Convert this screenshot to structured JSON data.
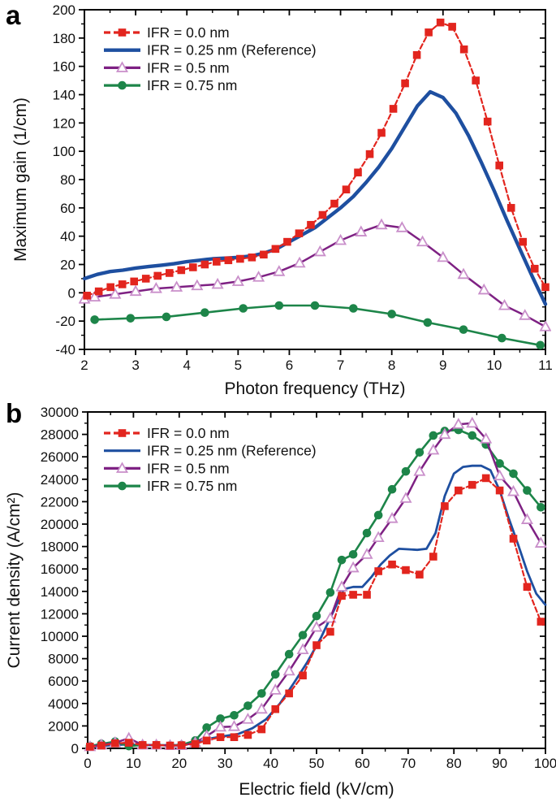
{
  "panels": [
    {
      "label": "a"
    },
    {
      "label": "b"
    }
  ],
  "chart_data": [
    {
      "type": "line",
      "panel": "a",
      "title": "",
      "xlabel": "Photon frequency (THz)",
      "ylabel": "Maximum gain (1/cm)",
      "xlim": [
        2,
        11
      ],
      "ylim": [
        -40,
        200
      ],
      "xticks": [
        2,
        3,
        4,
        5,
        6,
        7,
        8,
        9,
        10,
        11
      ],
      "yticks": [
        -40,
        -20,
        0,
        20,
        40,
        60,
        80,
        100,
        120,
        140,
        160,
        180,
        200
      ],
      "x_minor_step": 0.5,
      "y_minor_step": 10,
      "grid": false,
      "legend_position": "top-left",
      "series_order": [
        1,
        3,
        2,
        0
      ],
      "series": [
        {
          "name": "IFR = 0.0 nm",
          "color": "#e2251e",
          "marker": "square",
          "line": "dash",
          "width": 2.2,
          "x": [
            2.05,
            2.28,
            2.51,
            2.74,
            2.97,
            3.2,
            3.43,
            3.66,
            3.89,
            4.12,
            4.35,
            4.58,
            4.81,
            5.04,
            5.27,
            5.5,
            5.73,
            5.96,
            6.19,
            6.42,
            6.65,
            6.88,
            7.11,
            7.34,
            7.57,
            7.8,
            8.03,
            8.26,
            8.49,
            8.72,
            8.95,
            9.18,
            9.41,
            9.64,
            9.87,
            10.1,
            10.33,
            10.56,
            10.79,
            11.0
          ],
          "y": [
            -2,
            1,
            4,
            6,
            8,
            10,
            12,
            14,
            16,
            18,
            20,
            22,
            23,
            24,
            25,
            27,
            31,
            36,
            42,
            48,
            55,
            63,
            73,
            85,
            98,
            113,
            130,
            148,
            168,
            184,
            191,
            188,
            172,
            150,
            121,
            90,
            60,
            36,
            17,
            4
          ]
        },
        {
          "name": "IFR = 0.25 nm (Reference)",
          "color": "#1e4fa0",
          "marker": "none",
          "line": "solid",
          "width": 4.4,
          "x": [
            2,
            2.25,
            2.5,
            2.75,
            3,
            3.25,
            3.5,
            3.75,
            4,
            4.25,
            4.5,
            4.75,
            5,
            5.25,
            5.5,
            5.75,
            6,
            6.25,
            6.5,
            6.75,
            7,
            7.25,
            7.5,
            7.75,
            8,
            8.25,
            8.5,
            8.75,
            9,
            9.25,
            9.5,
            9.75,
            10,
            10.25,
            10.5,
            10.75,
            11
          ],
          "y": [
            10,
            13,
            15,
            16,
            17.5,
            18.5,
            19.5,
            20.5,
            22,
            23,
            24,
            24.5,
            25,
            26,
            28,
            31,
            36,
            41,
            46,
            53,
            60,
            68,
            78,
            89,
            102,
            117,
            132,
            142,
            138,
            127,
            111,
            92,
            72,
            51,
            31,
            11,
            -8
          ]
        },
        {
          "name": "IFR = 0.5 nm",
          "color": "#7e2183",
          "marker": "triangle-open",
          "marker_stroke": "#c98fca",
          "line": "solid",
          "width": 2.5,
          "x": [
            2.0,
            2.2,
            2.6,
            3.0,
            3.4,
            3.8,
            4.2,
            4.6,
            5.0,
            5.4,
            5.8,
            6.2,
            6.6,
            7.0,
            7.4,
            7.8,
            8.2,
            8.6,
            9.0,
            9.4,
            9.8,
            10.2,
            10.6,
            11.0
          ],
          "y": [
            -4.5,
            -3,
            -1,
            1,
            3,
            4,
            5,
            6,
            8,
            11,
            15,
            21,
            29,
            37,
            43,
            48,
            46,
            36,
            25,
            13,
            2,
            -9,
            -16,
            -24
          ]
        },
        {
          "name": "IFR = 0.75 nm",
          "color": "#1d8549",
          "marker": "circle",
          "line": "solid",
          "width": 2.6,
          "x": [
            2.2,
            2.9,
            3.6,
            4.35,
            5.1,
            5.8,
            6.5,
            7.25,
            8.0,
            8.7,
            9.4,
            10.15,
            10.9
          ],
          "y": [
            -19,
            -18,
            -17,
            -14,
            -11,
            -9,
            -9,
            -11,
            -15,
            -21,
            -26,
            -32,
            -37
          ]
        }
      ]
    },
    {
      "type": "line",
      "panel": "b",
      "title": "",
      "xlabel": "Electric field (kV/cm)",
      "ylabel": "Current density (A/cm²)",
      "xlim": [
        0,
        100
      ],
      "ylim": [
        0,
        30000
      ],
      "xticks": [
        0,
        10,
        20,
        30,
        40,
        50,
        60,
        70,
        80,
        90,
        100
      ],
      "yticks": [
        0,
        2000,
        4000,
        6000,
        8000,
        10000,
        12000,
        14000,
        16000,
        18000,
        20000,
        22000,
        24000,
        26000,
        28000,
        30000
      ],
      "x_minor_step": 5,
      "y_minor_step": 1000,
      "grid": false,
      "legend_position": "top-left",
      "series_order": [
        1,
        3,
        2,
        0
      ],
      "series": [
        {
          "name": "IFR = 0.0 nm",
          "color": "#e2251e",
          "marker": "square",
          "line": "dash",
          "width": 2.2,
          "x": [
            0.5,
            3,
            6,
            9,
            12,
            15,
            18,
            20.5,
            23.5,
            26,
            29,
            32,
            35,
            38,
            41,
            44,
            47,
            50,
            53,
            55.5,
            58,
            61,
            63.5,
            66.5,
            69.5,
            72.5,
            75.5,
            78,
            81,
            84,
            87,
            90,
            93,
            96,
            99
          ],
          "y": [
            150,
            250,
            450,
            500,
            300,
            300,
            250,
            280,
            400,
            700,
            1000,
            1000,
            1200,
            1700,
            3500,
            4900,
            6500,
            9200,
            10400,
            13600,
            13700,
            13700,
            15800,
            16400,
            15900,
            15500,
            17100,
            21600,
            23000,
            23500,
            24100,
            23000,
            18700,
            14400,
            11300
          ]
        },
        {
          "name": "IFR = 0.25 nm (Reference)",
          "color": "#1e4fa0",
          "marker": "none",
          "line": "solid",
          "width": 2.8,
          "x": [
            0,
            4,
            8,
            12,
            16,
            20,
            24,
            27,
            30,
            33,
            36,
            39,
            42,
            45,
            48,
            51,
            54,
            56,
            58,
            60,
            62,
            64,
            66,
            68,
            70,
            72,
            74,
            76,
            78,
            80,
            82,
            84,
            86,
            88,
            90,
            92,
            94,
            96,
            98,
            100
          ],
          "y": [
            150,
            250,
            350,
            300,
            280,
            300,
            500,
            900,
            1100,
            1300,
            1800,
            2600,
            4000,
            5800,
            7700,
            9900,
            12500,
            14200,
            14400,
            14400,
            15300,
            16400,
            17200,
            17800,
            17750,
            17700,
            17800,
            19200,
            22500,
            24500,
            25100,
            25200,
            25200,
            24800,
            23000,
            20500,
            18200,
            15800,
            13800,
            12800
          ]
        },
        {
          "name": "IFR = 0.5 nm",
          "color": "#7e2183",
          "marker": "triangle-open",
          "marker_stroke": "#c98fca",
          "line": "solid",
          "width": 2.5,
          "x": [
            0.5,
            3,
            6,
            9,
            12,
            15,
            18,
            20.5,
            23.5,
            26,
            29,
            32,
            35,
            38,
            41,
            44,
            47,
            50,
            53,
            55.5,
            58,
            61,
            63.5,
            66.5,
            69.5,
            72.5,
            75.5,
            78,
            81,
            84,
            87,
            90,
            93,
            96,
            99
          ],
          "y": [
            150,
            300,
            500,
            900,
            300,
            300,
            250,
            250,
            500,
            1100,
            1900,
            1950,
            2600,
            3500,
            5200,
            6900,
            8800,
            10800,
            11600,
            14400,
            16100,
            17300,
            18800,
            20500,
            22300,
            24700,
            26600,
            28000,
            28900,
            29000,
            27600,
            24300,
            22900,
            20400,
            18300
          ]
        },
        {
          "name": "IFR = 0.75 nm",
          "color": "#1d8549",
          "marker": "circle",
          "line": "solid",
          "width": 2.6,
          "x": [
            0.5,
            3,
            6,
            9,
            12,
            15,
            18,
            20.5,
            23.5,
            26,
            29,
            32,
            35,
            38,
            41,
            44,
            47,
            50,
            53,
            55.5,
            58,
            61,
            63.5,
            66.5,
            69.5,
            72.5,
            75.5,
            78,
            81,
            84,
            87,
            90,
            93,
            96,
            99
          ],
          "y": [
            200,
            400,
            600,
            200,
            300,
            300,
            250,
            300,
            700,
            1850,
            2650,
            2950,
            3800,
            4900,
            6600,
            8400,
            10100,
            11800,
            13900,
            16800,
            17300,
            19200,
            20800,
            23100,
            24700,
            26400,
            27900,
            28300,
            28400,
            27900,
            27100,
            25400,
            24500,
            23000,
            21500
          ]
        }
      ]
    }
  ]
}
